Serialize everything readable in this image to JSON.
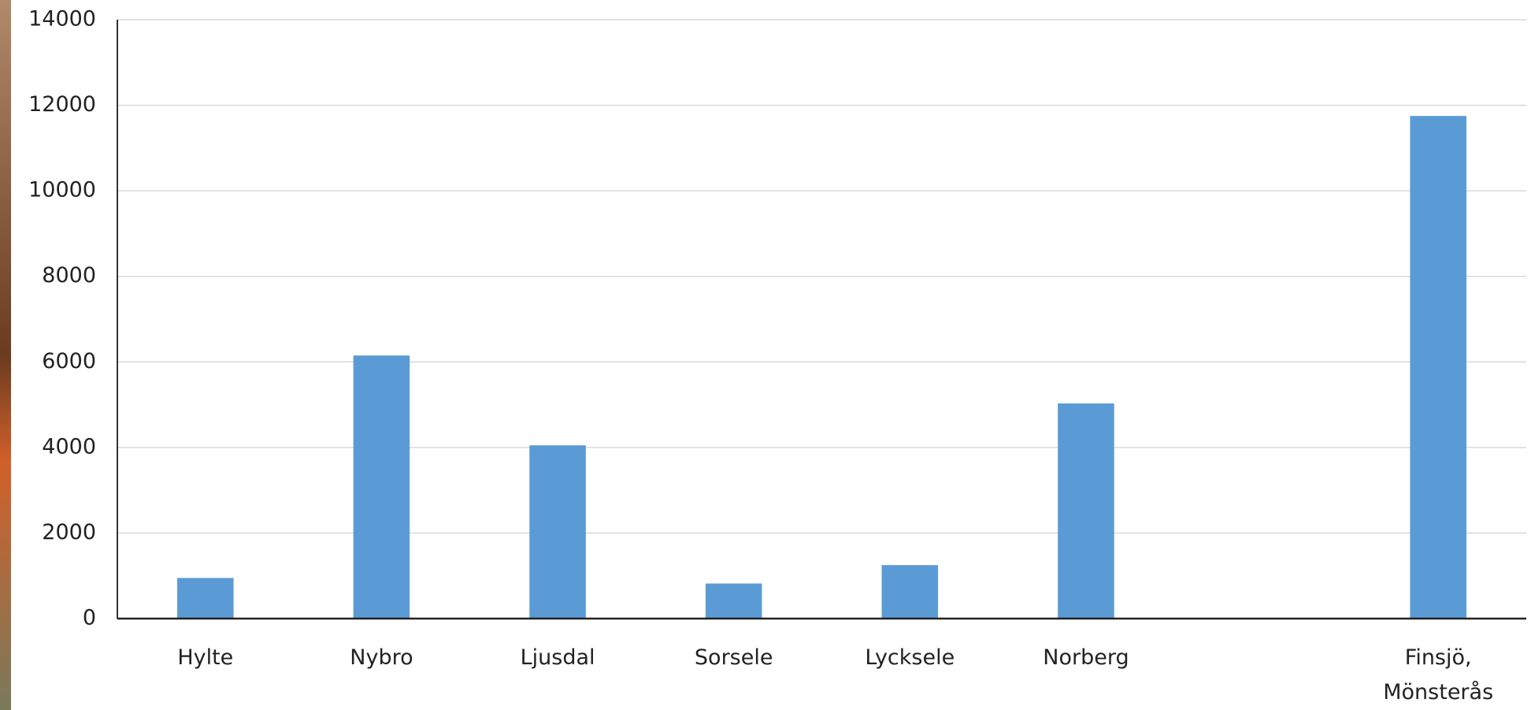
{
  "chart_data": {
    "type": "bar",
    "categories": [
      "Hylte",
      "Nybro",
      "Ljusdal",
      "Sorsele",
      "Lycksele",
      "Norberg",
      null,
      "Finsjö, Mönsterås"
    ],
    "values": [
      950,
      6150,
      4050,
      820,
      1250,
      5030,
      null,
      11750
    ],
    "color": "#5b9bd5",
    "ylim": [
      0,
      14000
    ],
    "yticks": [
      0,
      2000,
      4000,
      6000,
      8000,
      10000,
      12000,
      14000
    ],
    "grid": true
  }
}
